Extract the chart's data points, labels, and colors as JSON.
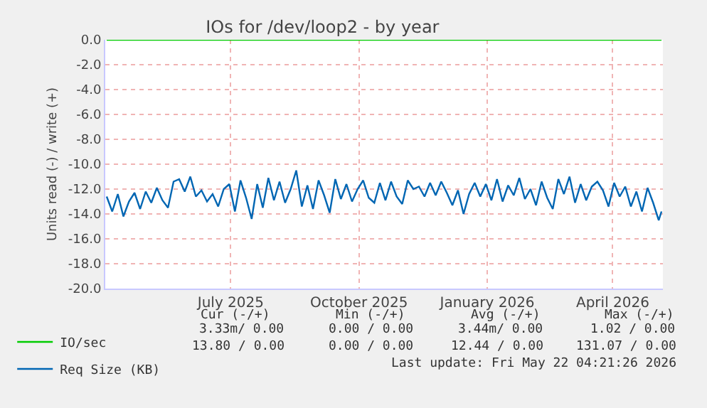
{
  "chart_data": {
    "type": "line",
    "title": "IOs for /dev/loop2 - by year",
    "ylabel": "Units read (-) / write (+)",
    "x": [
      "2025-04-18",
      "2025-04-22",
      "2025-04-26",
      "2025-04-30",
      "2025-05-04",
      "2025-05-08",
      "2025-05-12",
      "2025-05-16",
      "2025-05-20",
      "2025-05-24",
      "2025-05-28",
      "2025-06-01",
      "2025-06-05",
      "2025-06-09",
      "2025-06-13",
      "2025-06-17",
      "2025-06-21",
      "2025-06-25",
      "2025-06-29",
      "2025-07-03",
      "2025-07-07",
      "2025-07-11",
      "2025-07-15",
      "2025-07-19",
      "2025-07-23",
      "2025-07-27",
      "2025-07-31",
      "2025-08-04",
      "2025-08-08",
      "2025-08-12",
      "2025-08-16",
      "2025-08-20",
      "2025-08-24",
      "2025-08-28",
      "2025-09-01",
      "2025-09-05",
      "2025-09-09",
      "2025-09-13",
      "2025-09-17",
      "2025-09-21",
      "2025-09-25",
      "2025-09-29",
      "2025-10-03",
      "2025-10-07",
      "2025-10-11",
      "2025-10-15",
      "2025-10-19",
      "2025-10-23",
      "2025-10-27",
      "2025-10-31",
      "2025-11-04",
      "2025-11-08",
      "2025-11-12",
      "2025-11-16",
      "2025-11-20",
      "2025-11-24",
      "2025-11-28",
      "2025-12-02",
      "2025-12-06",
      "2025-12-10",
      "2025-12-14",
      "2025-12-18",
      "2025-12-22",
      "2025-12-26",
      "2025-12-30",
      "2026-01-03",
      "2026-01-07",
      "2026-01-11",
      "2026-01-15",
      "2026-01-19",
      "2026-01-23",
      "2026-01-27",
      "2026-01-31",
      "2026-02-04",
      "2026-02-08",
      "2026-02-12",
      "2026-02-16",
      "2026-02-20",
      "2026-02-24",
      "2026-02-28",
      "2026-03-04",
      "2026-03-08",
      "2026-03-12",
      "2026-03-16",
      "2026-03-20",
      "2026-03-24",
      "2026-03-28",
      "2026-04-01",
      "2026-04-05",
      "2026-04-09",
      "2026-04-13",
      "2026-04-17",
      "2026-04-21",
      "2026-04-25",
      "2026-04-29",
      "2026-05-03",
      "2026-05-07",
      "2026-05-11",
      "2026-05-15",
      "2026-05-19",
      "2026-05-21"
    ],
    "series": [
      {
        "name": "IO/sec",
        "color": "#00cc00",
        "x": [
          "2025-04-18",
          "2026-05-21"
        ],
        "values": [
          0.0,
          0.0
        ]
      },
      {
        "name": "Req Size (KB)",
        "color": "#0066b3",
        "values": [
          -12.6,
          -13.8,
          -12.4,
          -14.2,
          -13.0,
          -12.3,
          -13.6,
          -12.2,
          -13.1,
          -11.9,
          -12.9,
          -13.5,
          -11.4,
          -11.2,
          -12.2,
          -11.0,
          -12.6,
          -12.1,
          -13.0,
          -12.4,
          -13.4,
          -12.0,
          -11.6,
          -13.8,
          -11.3,
          -12.7,
          -14.4,
          -11.6,
          -13.5,
          -11.1,
          -12.9,
          -11.4,
          -13.1,
          -12.0,
          -10.5,
          -13.4,
          -11.7,
          -13.6,
          -11.3,
          -12.5,
          -13.9,
          -11.2,
          -12.8,
          -11.6,
          -13.0,
          -12.0,
          -11.3,
          -12.7,
          -13.1,
          -11.5,
          -12.9,
          -11.4,
          -12.6,
          -13.2,
          -11.3,
          -12.0,
          -11.8,
          -12.6,
          -11.5,
          -12.5,
          -11.4,
          -12.3,
          -13.3,
          -12.1,
          -14.0,
          -12.4,
          -11.5,
          -12.6,
          -11.6,
          -12.9,
          -11.2,
          -13.0,
          -11.7,
          -12.5,
          -11.1,
          -12.8,
          -12.0,
          -13.3,
          -11.4,
          -12.7,
          -13.6,
          -11.2,
          -12.4,
          -11.0,
          -13.1,
          -11.6,
          -12.9,
          -11.8,
          -11.4,
          -12.1,
          -13.4,
          -11.5,
          -12.6,
          -11.8,
          -13.4,
          -12.2,
          -13.8,
          -11.9,
          -13.1,
          -14.5,
          -13.8
        ]
      }
    ],
    "xlim": [
      "2025-04-17",
      "2026-05-22"
    ],
    "xticks": [
      {
        "value": "2025-07-16",
        "label": "July 2025"
      },
      {
        "value": "2025-10-16",
        "label": "October 2025"
      },
      {
        "value": "2026-01-16",
        "label": "January 2026"
      },
      {
        "value": "2026-04-16",
        "label": "April 2026"
      }
    ],
    "ylim": [
      -20,
      0
    ],
    "yticks": [
      {
        "value": 0,
        "label": "0.0"
      },
      {
        "value": -2,
        "label": "-2.0"
      },
      {
        "value": -4,
        "label": "-4.0"
      },
      {
        "value": -6,
        "label": "-6.0"
      },
      {
        "value": -8,
        "label": "-8.0"
      },
      {
        "value": -10,
        "label": "-10.0"
      },
      {
        "value": -12,
        "label": "-12.0"
      },
      {
        "value": -14,
        "label": "-14.0"
      },
      {
        "value": -16,
        "label": "-16.0"
      },
      {
        "value": -18,
        "label": "-18.0"
      },
      {
        "value": -20,
        "label": "-20.0"
      }
    ],
    "grid": true,
    "legend": "bottom",
    "marker": "none",
    "line_style": "solid",
    "annotations": [
      "Cur (-/+)",
      "Min (-/+)",
      "Avg (-/+)",
      "Max (-/+)",
      "3.33m/ 0.00",
      "0.00 / 0.00",
      "3.44m/ 0.00",
      "1.02 / 0.00",
      "13.80 / 0.00",
      "0.00 / 0.00",
      "12.44 / 0.00",
      "131.07 / 0.00",
      "Last update: Fri May 22 04:21:26 2026"
    ]
  }
}
